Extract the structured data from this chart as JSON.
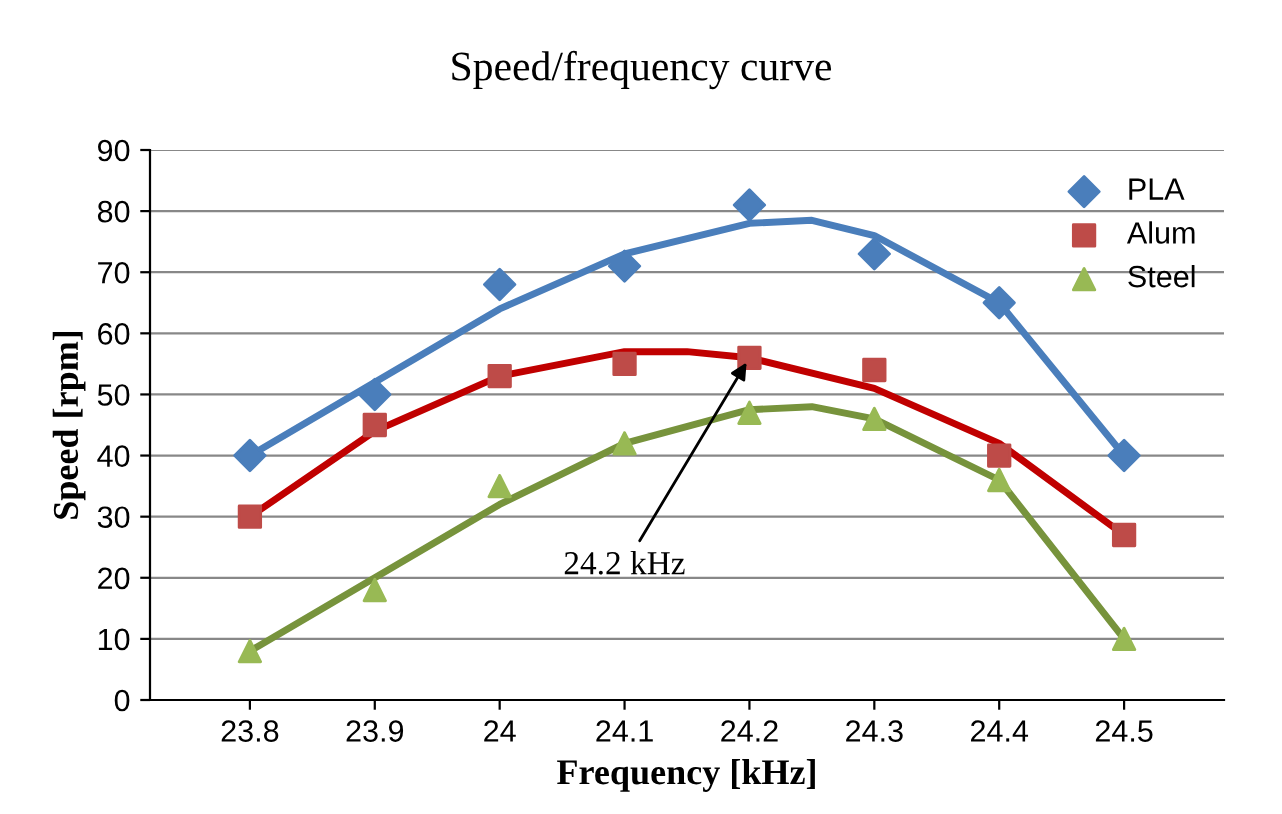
{
  "chart_data": {
    "type": "scatter",
    "title": "Speed/frequency curve",
    "xlabel": "Frequency [kHz]",
    "ylabel": "Speed [rpm]",
    "x": [
      23.8,
      23.9,
      24.0,
      24.1,
      24.2,
      24.3,
      24.4,
      24.5
    ],
    "series": [
      {
        "name": "PLA",
        "color": "#4a7ebb",
        "marker": "diamond",
        "values": [
          40,
          50,
          68,
          71,
          81,
          73,
          65,
          40
        ]
      },
      {
        "name": "Alum",
        "color": "#be4b48",
        "marker": "square",
        "values": [
          30,
          45,
          53,
          55,
          56,
          54,
          40,
          27
        ]
      },
      {
        "name": "Steel",
        "color": "#98b954",
        "marker": "triangle",
        "values": [
          8,
          18,
          35,
          42,
          47,
          46,
          36,
          10
        ]
      },
      {
        "type": "line",
        "color": "#4a7ebb",
        "x": [
          23.8,
          23.9,
          24.0,
          24.1,
          24.2,
          24.25,
          24.3,
          24.4,
          24.5
        ],
        "values": [
          40,
          52,
          64,
          73,
          78,
          78.5,
          76,
          65,
          40
        ]
      },
      {
        "type": "line",
        "color": "#c00000",
        "x": [
          23.8,
          23.9,
          24.0,
          24.1,
          24.15,
          24.2,
          24.3,
          24.4,
          24.5
        ],
        "values": [
          30,
          44,
          53,
          57,
          57,
          56,
          51,
          42,
          27
        ]
      },
      {
        "type": "line",
        "color": "#77933c",
        "x": [
          23.8,
          23.9,
          24.0,
          24.1,
          24.2,
          24.25,
          24.3,
          24.4,
          24.5
        ],
        "values": [
          8,
          20,
          32,
          42,
          47.5,
          48,
          46,
          36,
          10
        ]
      }
    ],
    "xlim": [
      23.72,
      24.58
    ],
    "xticks": [
      23.8,
      23.9,
      24,
      24.1,
      24.2,
      24.3,
      24.4,
      24.5
    ],
    "ylim": [
      0,
      90
    ],
    "yticks": [
      0,
      10,
      20,
      30,
      40,
      50,
      60,
      70,
      80,
      90
    ],
    "grid": "y",
    "legend": "top right",
    "annotations": [
      {
        "text": "24.2 kHz",
        "x": 24.2,
        "y": 56
      }
    ]
  }
}
